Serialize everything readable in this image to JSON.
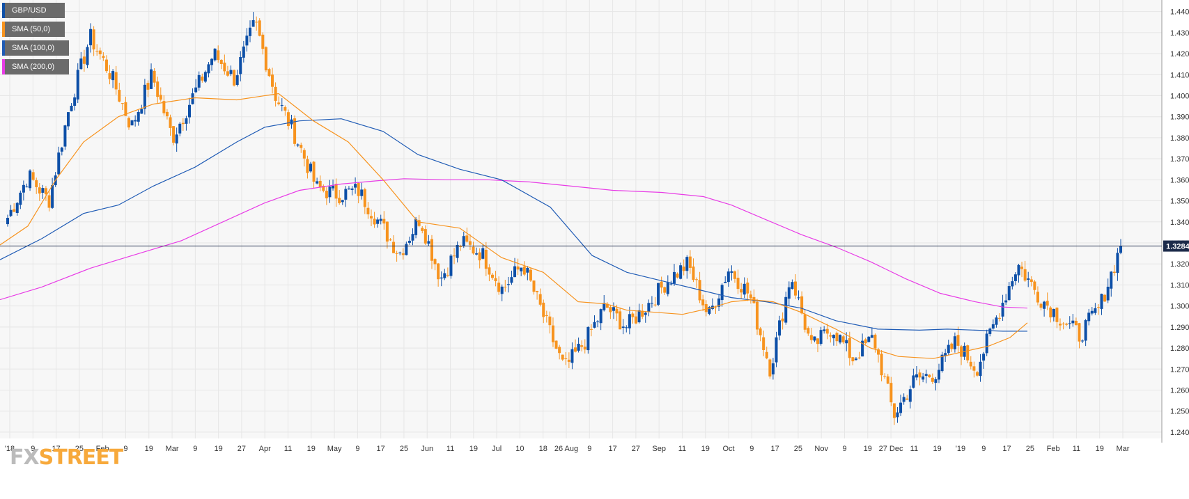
{
  "colors": {
    "up": "#0d4fa7",
    "down": "#f7931e",
    "sma50": "#f7931e",
    "sma100": "#1f5bb5",
    "sma200": "#e83ce6",
    "grid": "#e6e6e6",
    "price_line": "#1c2b4a",
    "price_badge": "#1c2b4a"
  },
  "legend": [
    {
      "label": "GBP/USD",
      "color": "#0d4fa7"
    },
    {
      "label": "SMA (50,0)",
      "color": "#f7931e"
    },
    {
      "label": "SMA (100,0)",
      "color": "#1f5bb5"
    },
    {
      "label": "SMA (200,0)",
      "color": "#e83ce6"
    }
  ],
  "brand": {
    "fx": "FX",
    "street": "STREET"
  },
  "chart_data": {
    "type": "candlestick",
    "symbol": "GBP/USD",
    "ylim": [
      1.237,
      1.4455
    ],
    "yticks": [
      "1.4400",
      "1.4300",
      "1.4200",
      "1.4100",
      "1.4000",
      "1.3900",
      "1.3800",
      "1.3700",
      "1.3600",
      "1.3500",
      "1.3400",
      "1.3300",
      "1.3200",
      "1.3100",
      "1.3000",
      "1.2900",
      "1.2800",
      "1.2700",
      "1.2600",
      "1.2500",
      "1.2400"
    ],
    "xticks": [
      "'18",
      "9",
      "17",
      "25",
      "Feb",
      "9",
      "19",
      "Mar",
      "9",
      "19",
      "27",
      "Apr",
      "11",
      "19",
      "May",
      "9",
      "17",
      "25",
      "Jun",
      "11",
      "19",
      "Jul",
      "10",
      "18",
      "26 Aug",
      "9",
      "17",
      "27",
      "Sep",
      "11",
      "19",
      "Oct",
      "9",
      "17",
      "25",
      "Nov",
      "9",
      "19",
      "27 Dec",
      "11",
      "19",
      "'19",
      "9",
      "17",
      "25",
      "Feb",
      "11",
      "19",
      "Mar"
    ],
    "last_price": "1.32849",
    "anchors": [
      1.342,
      1.362,
      1.35,
      1.395,
      1.428,
      1.41,
      1.385,
      1.41,
      1.38,
      1.4,
      1.42,
      1.408,
      1.435,
      1.4,
      1.38,
      1.356,
      1.353,
      1.355,
      1.34,
      1.325,
      1.342,
      1.313,
      1.33,
      1.325,
      1.308,
      1.32,
      1.295,
      1.27,
      1.283,
      1.3,
      1.29,
      1.3,
      1.312,
      1.32,
      1.295,
      1.318,
      1.305,
      1.27,
      1.315,
      1.28,
      1.29,
      1.275,
      1.285,
      1.248,
      1.265,
      1.268,
      1.283,
      1.27,
      1.295,
      1.32,
      1.305,
      1.295,
      1.286,
      1.3,
      1.3285
    ],
    "sma50": [
      [
        0,
        1.329
      ],
      [
        40,
        1.338
      ],
      [
        80,
        1.36
      ],
      [
        120,
        1.378
      ],
      [
        170,
        1.39
      ],
      [
        220,
        1.396
      ],
      [
        280,
        1.399
      ],
      [
        340,
        1.398
      ],
      [
        400,
        1.401
      ],
      [
        450,
        1.388
      ],
      [
        500,
        1.378
      ],
      [
        550,
        1.36
      ],
      [
        600,
        1.34
      ],
      [
        660,
        1.337
      ],
      [
        720,
        1.323
      ],
      [
        780,
        1.316
      ],
      [
        830,
        1.302
      ],
      [
        870,
        1.301
      ],
      [
        900,
        1.298
      ],
      [
        940,
        1.297
      ],
      [
        980,
        1.296
      ],
      [
        1020,
        1.299
      ],
      [
        1050,
        1.302
      ],
      [
        1080,
        1.303
      ],
      [
        1110,
        1.302
      ],
      [
        1150,
        1.297
      ],
      [
        1200,
        1.289
      ],
      [
        1250,
        1.28
      ],
      [
        1290,
        1.276
      ],
      [
        1340,
        1.275
      ],
      [
        1380,
        1.278
      ],
      [
        1420,
        1.281
      ],
      [
        1450,
        1.285
      ],
      [
        1475,
        1.292
      ]
    ],
    "sma100": [
      [
        0,
        1.322
      ],
      [
        60,
        1.332
      ],
      [
        120,
        1.344
      ],
      [
        170,
        1.348
      ],
      [
        220,
        1.357
      ],
      [
        280,
        1.366
      ],
      [
        340,
        1.378
      ],
      [
        380,
        1.385
      ],
      [
        430,
        1.388
      ],
      [
        490,
        1.389
      ],
      [
        550,
        1.383
      ],
      [
        600,
        1.372
      ],
      [
        660,
        1.365
      ],
      [
        720,
        1.36
      ],
      [
        790,
        1.347
      ],
      [
        850,
        1.324
      ],
      [
        900,
        1.316
      ],
      [
        950,
        1.312
      ],
      [
        1000,
        1.308
      ],
      [
        1050,
        1.304
      ],
      [
        1100,
        1.302
      ],
      [
        1150,
        1.299
      ],
      [
        1200,
        1.293
      ],
      [
        1260,
        1.289
      ],
      [
        1320,
        1.2885
      ],
      [
        1360,
        1.289
      ],
      [
        1400,
        1.2885
      ],
      [
        1440,
        1.288
      ],
      [
        1475,
        1.288
      ]
    ],
    "sma200": [
      [
        0,
        1.303
      ],
      [
        60,
        1.309
      ],
      [
        130,
        1.318
      ],
      [
        200,
        1.325
      ],
      [
        260,
        1.331
      ],
      [
        320,
        1.34
      ],
      [
        380,
        1.349
      ],
      [
        430,
        1.355
      ],
      [
        490,
        1.358
      ],
      [
        540,
        1.3595
      ],
      [
        580,
        1.3605
      ],
      [
        640,
        1.36
      ],
      [
        700,
        1.36
      ],
      [
        760,
        1.359
      ],
      [
        820,
        1.357
      ],
      [
        880,
        1.355
      ],
      [
        950,
        1.354
      ],
      [
        1010,
        1.352
      ],
      [
        1050,
        1.348
      ],
      [
        1100,
        1.341
      ],
      [
        1150,
        1.334
      ],
      [
        1200,
        1.328
      ],
      [
        1250,
        1.321
      ],
      [
        1300,
        1.313
      ],
      [
        1350,
        1.306
      ],
      [
        1400,
        1.302
      ],
      [
        1440,
        1.2995
      ],
      [
        1475,
        1.299
      ]
    ]
  }
}
